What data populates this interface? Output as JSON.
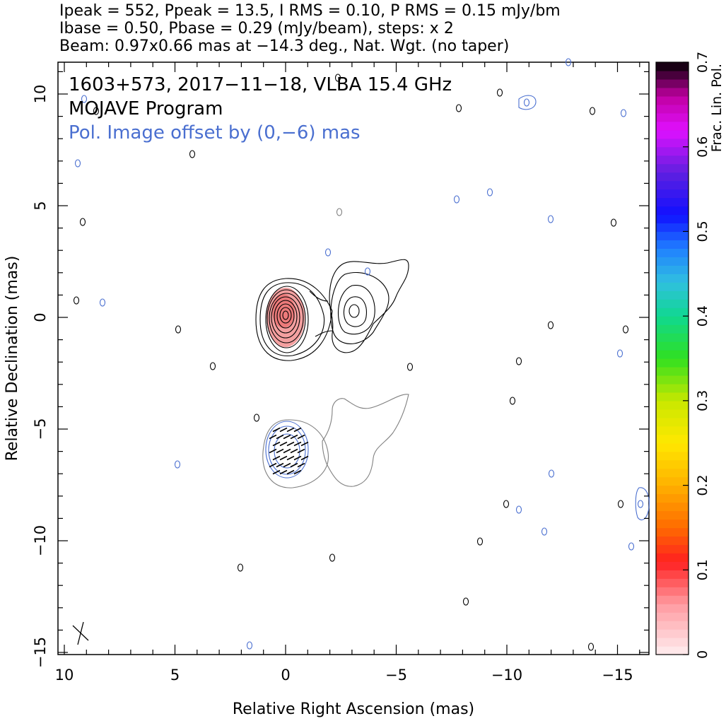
{
  "header": {
    "line1": "Ipeak = 552, Ppeak = 13.5, I RMS = 0.10, P RMS = 0.15 mJy/bm",
    "line2": "Ibase = 0.50, Pbase = 0.29 (mJy/beam), steps: x 2",
    "line3": "Beam: 0.97x0.66 mas at −14.3 deg., Nat. Wgt. (no taper)"
  },
  "annotations": {
    "source": "1603+573, 2017−11−18, VLBA 15.4 GHz",
    "program": "MOJAVE Program",
    "pol_offset": "Pol. Image offset by (0,−6) mas"
  },
  "colors": {
    "total_intensity_contour": "#000000",
    "polarization_contour": "#808080",
    "pol_mark": "#4a6fd0",
    "evpa_stick": "#000000",
    "core_fill": "#f08080"
  },
  "chart_data": {
    "type": "contour",
    "xlabel": "Relative Right Ascension (mas)",
    "ylabel": "Relative Declination (mas)",
    "xlim": [
      10,
      -16
    ],
    "ylim": [
      -15,
      11.5
    ],
    "x_ticks": [
      {
        "v": 10,
        "label": "10"
      },
      {
        "v": 5,
        "label": "5"
      },
      {
        "v": 0,
        "label": "0"
      },
      {
        "v": -5,
        "label": "−5"
      },
      {
        "v": -10,
        "label": "−10"
      },
      {
        "v": -15,
        "label": "−15"
      }
    ],
    "y_ticks": [
      {
        "v": 10,
        "label": "10"
      },
      {
        "v": 5,
        "label": "5"
      },
      {
        "v": 0,
        "label": "0"
      },
      {
        "v": -5,
        "label": "−5"
      },
      {
        "v": -10,
        "label": "−10"
      },
      {
        "v": -15,
        "label": "−15"
      }
    ],
    "colorbar": {
      "label": "Frac. Lin. Pol.",
      "range": [
        0,
        0.7
      ],
      "ticks": [
        {
          "v": 0,
          "label": "0"
        },
        {
          "v": 0.1,
          "label": "0.1"
        },
        {
          "v": 0.2,
          "label": "0.2"
        },
        {
          "v": 0.3,
          "label": "0.3"
        },
        {
          "v": 0.4,
          "label": "0.4"
        },
        {
          "v": 0.5,
          "label": "0.5"
        },
        {
          "v": 0.6,
          "label": "0.6"
        },
        {
          "v": 0.7,
          "label": "0.7"
        }
      ]
    },
    "beam": {
      "major_mas": 0.97,
      "minor_mas": 0.66,
      "pa_deg": -14.3,
      "position": "bottom-left"
    },
    "peaks": {
      "ipeak_mJy": 552,
      "ppeak_mJy": 13.5
    },
    "core": {
      "x": 0,
      "y": 0,
      "frac_pol": 0.08
    },
    "jet_component": {
      "x": -3,
      "y": 0.3
    },
    "pol_offset_mas": [
      0,
      -6
    ]
  }
}
